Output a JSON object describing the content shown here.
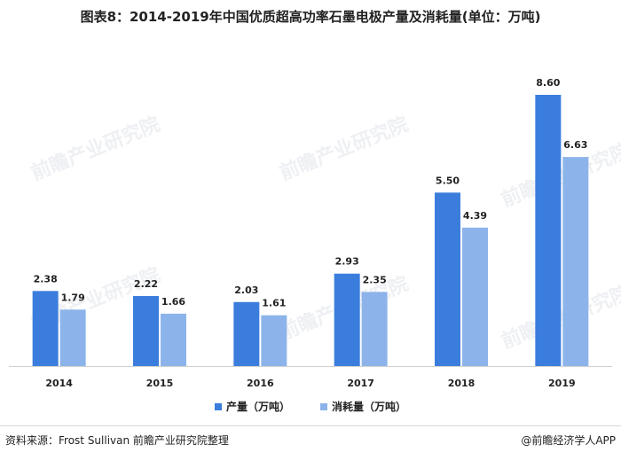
{
  "title": "图表8：2014-2019年中国优质超高功率石墨电极产量及消耗量(单位：万吨)",
  "chart_data": {
    "type": "bar",
    "categories": [
      "2014",
      "2015",
      "2016",
      "2017",
      "2018",
      "2019"
    ],
    "series": [
      {
        "name": "产量（万吨）",
        "values": [
          2.38,
          2.22,
          2.03,
          2.93,
          5.5,
          8.6
        ],
        "labels": [
          "2.38",
          "2.22",
          "2.03",
          "2.93",
          "5.50",
          "8.60"
        ],
        "color": "#3b7ddd"
      },
      {
        "name": "消耗量（万吨）",
        "values": [
          1.79,
          1.66,
          1.61,
          2.35,
          4.39,
          6.63
        ],
        "labels": [
          "1.79",
          "1.66",
          "1.61",
          "2.35",
          "4.39",
          "6.63"
        ],
        "color": "#8db4ea"
      }
    ],
    "ylim": [
      0,
      8.6
    ],
    "grid": false,
    "legend_position": "bottom"
  },
  "footer": {
    "source": "资料来源：Frost Sullivan 前瞻产业研究院整理",
    "brand": "@前瞻经济学人APP"
  },
  "watermark_text": "前瞻产业研究院"
}
